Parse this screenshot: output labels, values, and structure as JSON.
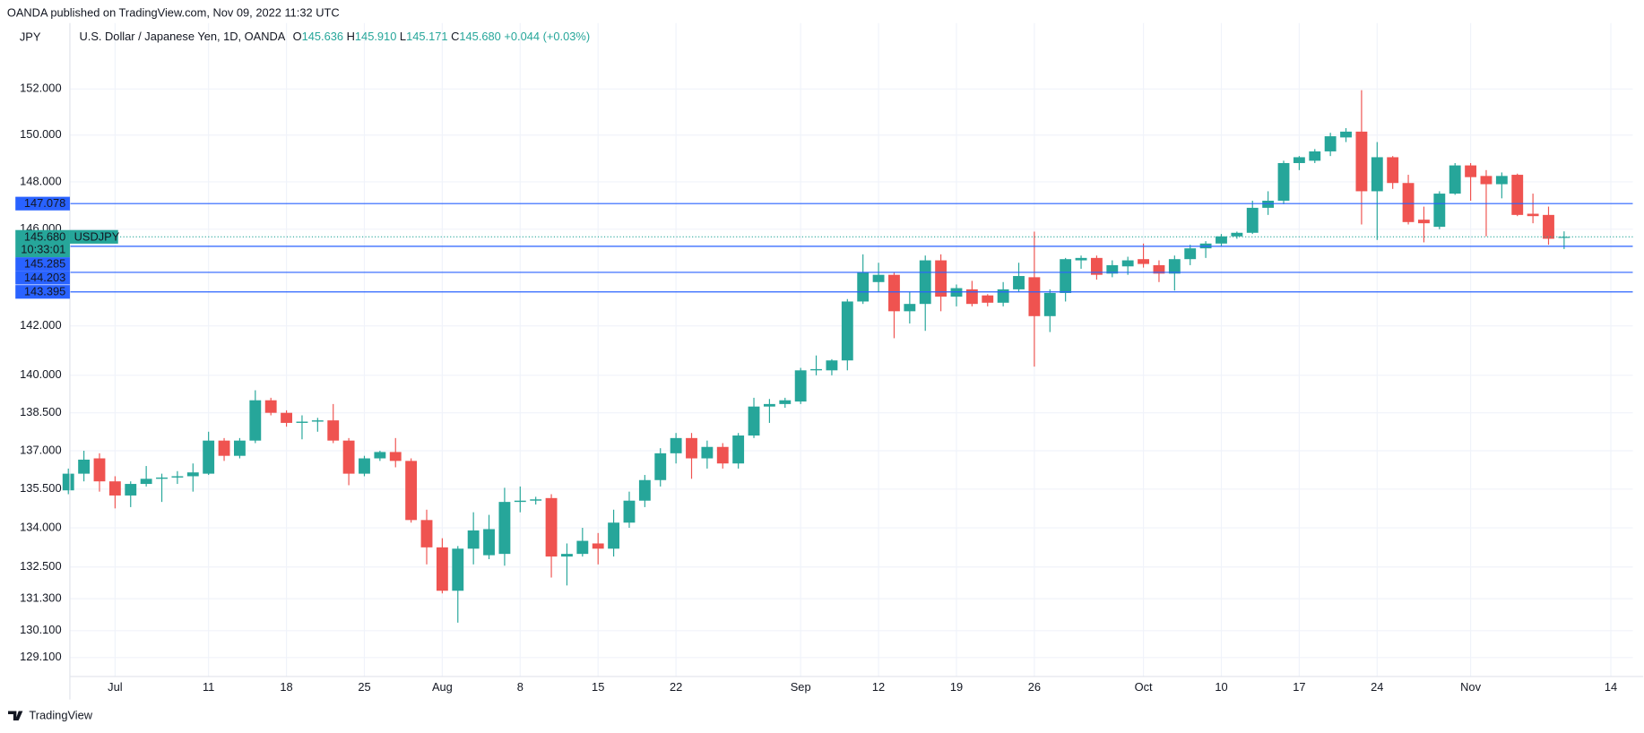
{
  "header": {
    "published": "OANDA published on TradingView.com, Nov 09, 2022 11:32 UTC",
    "ohlc": [
      {
        "key": "O",
        "value": "145.636"
      },
      {
        "key": "H",
        "value": "145.910"
      },
      {
        "key": "L",
        "value": "145.171"
      },
      {
        "key": "C",
        "value": "145.680"
      }
    ],
    "change": "+0.044",
    "change_pct": "(+0.03%)"
  },
  "footer": {
    "brand": "TradingView"
  },
  "chart_data": {
    "type": "candlestick",
    "title": "U.S. Dollar / Japanese Yen, 1D, OANDA",
    "currency": "JPY",
    "symbol": "USDJPY",
    "countdown": "10:33:01",
    "last_price": {
      "value": 145.68,
      "label": "145.680"
    },
    "up_color": "#26a69a",
    "down_color": "#ef5350",
    "line_color": "#2962ff",
    "grid": true,
    "log_scale": true,
    "xlim": [
      0.1,
      99.6
    ],
    "ylim": [
      128.4,
      153.7
    ],
    "xticks": [
      {
        "value": 3,
        "label": "Jul"
      },
      {
        "value": 9,
        "label": "11"
      },
      {
        "value": 14,
        "label": "18"
      },
      {
        "value": 19,
        "label": "25"
      },
      {
        "value": 24,
        "label": "Aug"
      },
      {
        "value": 29,
        "label": "8"
      },
      {
        "value": 34,
        "label": "15"
      },
      {
        "value": 39,
        "label": "22"
      },
      {
        "value": 47,
        "label": "Sep"
      },
      {
        "value": 52,
        "label": "12"
      },
      {
        "value": 57,
        "label": "19"
      },
      {
        "value": 62,
        "label": "26"
      },
      {
        "value": 69,
        "label": "Oct"
      },
      {
        "value": 74,
        "label": "10"
      },
      {
        "value": 79,
        "label": "17"
      },
      {
        "value": 84,
        "label": "24"
      },
      {
        "value": 90,
        "label": "Nov"
      },
      {
        "value": 99,
        "label": "14"
      }
    ],
    "yticks": [
      {
        "value": 152,
        "label": "152.000"
      },
      {
        "value": 150,
        "label": "150.000"
      },
      {
        "value": 148,
        "label": "148.000"
      },
      {
        "value": 146,
        "label": "146.000"
      },
      {
        "value": 142,
        "label": "142.000"
      },
      {
        "value": 140,
        "label": "140.000"
      },
      {
        "value": 138.5,
        "label": "138.500"
      },
      {
        "value": 137,
        "label": "137.000"
      },
      {
        "value": 135.5,
        "label": "135.500"
      },
      {
        "value": 134,
        "label": "134.000"
      },
      {
        "value": 132.5,
        "label": "132.500"
      },
      {
        "value": 131.3,
        "label": "131.300"
      },
      {
        "value": 130.1,
        "label": "130.100"
      },
      {
        "value": 129.1,
        "label": "129.100"
      }
    ],
    "price_lines": [
      147.078,
      145.285,
      144.203,
      143.395
    ],
    "open": [
      135.45,
      136.1,
      136.7,
      135.8,
      135.25,
      135.7,
      135.9,
      135.95,
      136.0,
      136.1,
      137.4,
      136.8,
      137.4,
      139.0,
      138.5,
      138.1,
      138.15,
      138.2,
      137.4,
      136.1,
      136.7,
      136.95,
      136.6,
      134.3,
      133.25,
      131.6,
      133.2,
      132.95,
      133.0,
      135.0,
      135.05,
      135.15,
      132.9,
      133.0,
      133.4,
      133.2,
      134.2,
      135.05,
      135.85,
      136.9,
      137.5,
      136.7,
      137.15,
      136.5,
      137.6,
      138.75,
      138.85,
      138.95,
      140.2,
      140.2,
      140.6,
      143.0,
      143.8,
      144.1,
      142.6,
      142.9,
      144.7,
      143.2,
      143.5,
      143.25,
      142.95,
      143.5,
      144.0,
      142.4,
      143.35,
      144.7,
      144.8,
      144.15,
      144.45,
      144.75,
      144.5,
      144.15,
      144.75,
      145.2,
      145.4,
      145.7,
      145.85,
      146.9,
      147.2,
      148.8,
      148.9,
      149.3,
      149.9,
      150.15,
      147.6,
      149.05,
      147.95,
      146.4,
      146.1,
      147.5,
      148.7,
      148.25,
      147.9,
      148.3,
      146.65,
      146.6,
      145.636
    ],
    "high": [
      136.3,
      137.0,
      136.9,
      136.0,
      135.8,
      136.4,
      136.1,
      136.2,
      136.5,
      137.75,
      137.5,
      137.5,
      139.4,
      139.1,
      138.6,
      138.4,
      138.3,
      138.85,
      137.5,
      136.8,
      137.0,
      137.5,
      136.7,
      134.7,
      133.6,
      133.3,
      134.6,
      134.5,
      135.55,
      135.6,
      135.2,
      135.3,
      133.4,
      134.0,
      133.8,
      134.7,
      135.4,
      136.05,
      137.1,
      137.7,
      137.7,
      137.4,
      137.3,
      137.7,
      139.1,
      139.05,
      139.1,
      140.3,
      140.8,
      140.65,
      143.1,
      144.95,
      144.6,
      144.2,
      143.4,
      144.9,
      144.95,
      143.7,
      143.85,
      143.3,
      143.8,
      144.6,
      145.9,
      143.5,
      144.8,
      144.9,
      144.9,
      144.7,
      144.85,
      145.4,
      144.7,
      144.9,
      145.35,
      145.5,
      145.8,
      145.9,
      147.2,
      147.6,
      148.9,
      149.1,
      149.4,
      150.1,
      150.3,
      151.95,
      149.7,
      149.1,
      148.3,
      146.95,
      147.6,
      148.8,
      148.8,
      148.5,
      148.4,
      148.35,
      147.5,
      146.95,
      145.91
    ],
    "low": [
      135.3,
      135.8,
      135.4,
      134.75,
      134.8,
      135.6,
      135.0,
      135.7,
      135.4,
      136.05,
      136.6,
      136.7,
      137.3,
      138.4,
      137.95,
      137.45,
      137.75,
      137.3,
      135.65,
      136.0,
      136.6,
      136.35,
      134.2,
      132.6,
      131.5,
      130.4,
      132.6,
      132.8,
      132.55,
      134.6,
      134.9,
      132.1,
      131.8,
      132.9,
      132.6,
      132.9,
      134.0,
      134.8,
      135.6,
      136.5,
      135.9,
      136.3,
      136.3,
      136.3,
      137.5,
      138.1,
      138.7,
      138.85,
      140.0,
      140.0,
      140.2,
      142.9,
      143.4,
      141.5,
      142.1,
      141.8,
      142.6,
      142.8,
      142.8,
      142.8,
      142.8,
      143.4,
      140.35,
      141.75,
      143.0,
      144.35,
      143.9,
      144.0,
      144.1,
      144.4,
      143.8,
      143.45,
      144.5,
      144.8,
      145.3,
      145.6,
      145.8,
      146.6,
      147.05,
      148.5,
      148.8,
      149.1,
      149.7,
      146.2,
      145.55,
      147.7,
      146.2,
      145.45,
      146.0,
      147.45,
      147.2,
      145.7,
      147.3,
      146.55,
      146.25,
      145.35,
      145.171
    ],
    "close": [
      136.1,
      136.65,
      135.8,
      135.25,
      135.7,
      135.9,
      135.95,
      136.0,
      136.15,
      137.4,
      136.8,
      137.4,
      139.0,
      138.5,
      138.1,
      138.15,
      138.2,
      137.4,
      136.1,
      136.7,
      136.95,
      136.6,
      134.3,
      133.25,
      131.6,
      133.2,
      133.9,
      133.95,
      135.0,
      135.05,
      135.1,
      132.9,
      133.0,
      133.5,
      133.2,
      134.2,
      135.05,
      135.85,
      136.9,
      137.5,
      136.7,
      137.15,
      136.5,
      137.6,
      138.75,
      138.85,
      139.0,
      140.2,
      140.25,
      140.6,
      143.0,
      144.2,
      144.1,
      142.6,
      142.9,
      144.7,
      143.2,
      143.55,
      142.9,
      142.95,
      143.5,
      144.05,
      142.4,
      143.35,
      144.75,
      144.8,
      144.1,
      144.5,
      144.7,
      144.55,
      144.15,
      144.75,
      145.2,
      145.4,
      145.7,
      145.85,
      146.9,
      147.2,
      148.8,
      149.05,
      149.3,
      149.95,
      150.15,
      147.6,
      149.05,
      147.95,
      146.3,
      146.25,
      147.5,
      148.7,
      148.2,
      147.9,
      148.25,
      146.6,
      146.55,
      145.6,
      145.68
    ]
  }
}
